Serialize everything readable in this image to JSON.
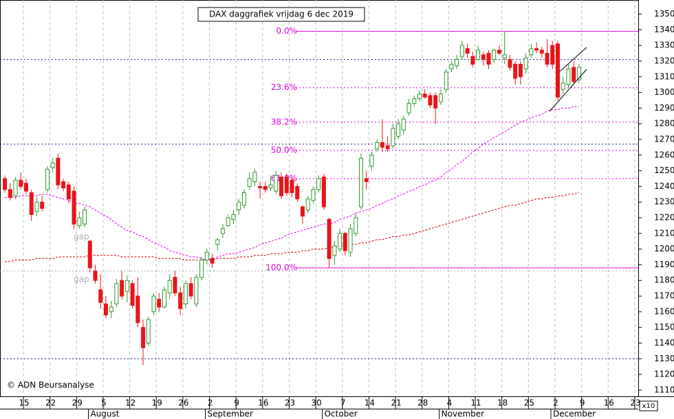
{
  "chart_data": {
    "type": "candlestick",
    "title": "DAX daggrafiek vrijdag 6 dec 2019",
    "copyright": "© ADN Beursanalyse",
    "axis_note": "x10",
    "annotations": [
      "gap",
      "gap"
    ],
    "months": [
      "August",
      "September",
      "October",
      "November",
      "December"
    ],
    "categories": [
      null,
      null,
      null,
      null,
      "15",
      null,
      null,
      null,
      null,
      "22",
      null,
      null,
      null,
      null,
      "29",
      null,
      null,
      null,
      null,
      "5",
      null,
      null,
      null,
      null,
      "12",
      null,
      null,
      null,
      null,
      "19",
      null,
      null,
      null,
      null,
      "26",
      null,
      null,
      null,
      null,
      "2",
      null,
      null,
      null,
      null,
      "9",
      null,
      null,
      null,
      null,
      "16",
      null,
      null,
      null,
      null,
      "23",
      null,
      null,
      null,
      null,
      "30",
      null,
      null,
      null,
      null,
      "7",
      null,
      null,
      null,
      null,
      "14",
      null,
      null,
      null,
      null,
      "21",
      null,
      null,
      null,
      null,
      "28",
      null,
      null,
      null,
      null,
      "4",
      null,
      null,
      null,
      null,
      "11",
      null,
      null,
      null,
      null,
      "18",
      null,
      null,
      null,
      null,
      "25",
      null,
      null,
      null,
      null,
      "2",
      null,
      null,
      null,
      null,
      "9",
      null,
      null,
      null,
      null,
      "16",
      null,
      null,
      null,
      null,
      "23"
    ],
    "up_color": "#2e9a2e",
    "down_color": "#e8141a",
    "open": [
      1245,
      1238,
      1234,
      1244,
      1242,
      1236,
      1224,
      1230,
      1238,
      1252,
      1258,
      1243,
      1241,
      1237,
      1215,
      1216,
      1205,
      1186,
      1174,
      1165,
      1160,
      1165,
      1180,
      1173,
      1178,
      1170,
      1150,
      1140,
      1160,
      1168,
      1163,
      1172,
      1182,
      1172,
      1165,
      1178,
      1165,
      1182,
      1193,
      1194,
      1203,
      1210,
      1215,
      1219,
      1225,
      1228,
      1240,
      1243,
      1240,
      1240,
      1239,
      1237,
      1246,
      1246,
      1244,
      1240,
      1227,
      1225,
      1231,
      1238,
      1246,
      1219,
      1196,
      1200,
      1210,
      1198,
      1210,
      1227,
      1245,
      1253,
      1264,
      1268,
      1266,
      1266,
      1272,
      1276,
      1287,
      1293,
      1296,
      1299,
      1298,
      1298,
      1294,
      1302,
      1315,
      1317,
      1323,
      1328,
      1323,
      1321,
      1324,
      1325,
      1321,
      1327,
      1322,
      1321,
      1318,
      1318,
      1315,
      1324,
      1328,
      1327,
      1325,
      1330,
      1331,
      1302,
      1305,
      1316,
      1308,
      null,
      null,
      null,
      null,
      null,
      null,
      null,
      null,
      null,
      null,
      null
    ],
    "high": [
      1247,
      1242,
      1246,
      1249,
      1245,
      1238,
      1233,
      1234,
      1253,
      1258,
      1261,
      1245,
      1243,
      1240,
      1224,
      1227,
      1206,
      1190,
      1184,
      1170,
      1167,
      1181,
      1186,
      1183,
      1180,
      1182,
      1155,
      1157,
      1172,
      1172,
      1176,
      1184,
      1186,
      1176,
      1180,
      1182,
      1184,
      1195,
      1200,
      1197,
      1207,
      1216,
      1222,
      1225,
      1232,
      1238,
      1249,
      1251,
      1243,
      1243,
      1247,
      1250,
      1249,
      1248,
      1246,
      1242,
      1228,
      1234,
      1240,
      1247,
      1248,
      1220,
      1205,
      1213,
      1211,
      1216,
      1223,
      1261,
      1250,
      1262,
      1270,
      1283,
      1272,
      1280,
      1283,
      1285,
      1296,
      1298,
      1301,
      1302,
      1300,
      1300,
      1302,
      1315,
      1320,
      1324,
      1333,
      1331,
      1326,
      1330,
      1326,
      1327,
      1328,
      1330,
      1339,
      1324,
      1320,
      1320,
      1325,
      1331,
      1332,
      1329,
      1334,
      1333,
      1333,
      1310,
      1318,
      1320,
      1318,
      null,
      null,
      null,
      null,
      null,
      null,
      null,
      null,
      null,
      null,
      null
    ],
    "low": [
      1236,
      1231,
      1232,
      1238,
      1235,
      1218,
      1221,
      1224,
      1236,
      1249,
      1238,
      1237,
      1229,
      1213,
      1213,
      1214,
      1185,
      1178,
      1162,
      1156,
      1156,
      1163,
      1168,
      1166,
      1162,
      1150,
      1126,
      1138,
      1158,
      1160,
      1162,
      1168,
      1170,
      1158,
      1162,
      1168,
      1163,
      1180,
      1190,
      1188,
      1199,
      1207,
      1214,
      1216,
      1222,
      1226,
      1238,
      1240,
      1232,
      1236,
      1237,
      1235,
      1232,
      1234,
      1233,
      1230,
      1216,
      1223,
      1229,
      1236,
      1225,
      1188,
      1190,
      1198,
      1196,
      1195,
      1208,
      1225,
      1238,
      1250,
      1262,
      1262,
      1262,
      1264,
      1270,
      1273,
      1285,
      1291,
      1294,
      1296,
      1290,
      1280,
      1292,
      1300,
      1313,
      1315,
      1321,
      1322,
      1316,
      1320,
      1317,
      1315,
      1319,
      1324,
      1318,
      1314,
      1305,
      1305,
      1312,
      1322,
      1325,
      1322,
      1316,
      1315,
      1295,
      1299,
      1303,
      1305,
      1306,
      null,
      null,
      null,
      null,
      null,
      null,
      null,
      null,
      null,
      null,
      null
    ],
    "close": [
      1238,
      1233,
      1244,
      1240,
      1237,
      1222,
      1230,
      1226,
      1251,
      1255,
      1241,
      1239,
      1232,
      1216,
      1220,
      1225,
      1188,
      1180,
      1166,
      1158,
      1163,
      1178,
      1170,
      1180,
      1164,
      1153,
      1137,
      1155,
      1170,
      1163,
      1174,
      1180,
      1172,
      1162,
      1178,
      1170,
      1182,
      1193,
      1198,
      1191,
      1206,
      1213,
      1220,
      1222,
      1230,
      1236,
      1245,
      1249,
      1239,
      1238,
      1241,
      1247,
      1234,
      1236,
      1236,
      1232,
      1221,
      1232,
      1238,
      1245,
      1227,
      1194,
      1202,
      1210,
      1199,
      1213,
      1220,
      1258,
      1243,
      1260,
      1268,
      1265,
      1264,
      1277,
      1280,
      1283,
      1293,
      1296,
      1299,
      1297,
      1292,
      1290,
      1299,
      1313,
      1318,
      1321,
      1330,
      1325,
      1318,
      1327,
      1321,
      1318,
      1327,
      1325,
      1324,
      1316,
      1309,
      1310,
      1322,
      1328,
      1327,
      1325,
      1318,
      1318,
      1297,
      1306,
      1315,
      1307,
      1316,
      null,
      null,
      null,
      null,
      null,
      null,
      null,
      null,
      null,
      null,
      null
    ],
    "series": [
      {
        "color": "#e000e0",
        "values": [
          1233,
          1233,
          1233,
          1234,
          1234,
          1234,
          1234,
          1235,
          1235,
          1234,
          1233,
          1232,
          1231,
          1230,
          1229,
          1228,
          1227,
          1225,
          1223,
          1221,
          1219,
          1216,
          1214,
          1212,
          1211,
          1209,
          1208,
          1206,
          1204,
          1203,
          1201,
          1199,
          1198,
          1197,
          1196,
          1195,
          1195,
          1194,
          1193,
          1194,
          1195,
          1196,
          1197,
          1197,
          1198,
          1199,
          1200,
          1201,
          1203,
          1204,
          1205,
          1206,
          1207,
          1209,
          1210,
          1211,
          1212,
          1213,
          1214,
          1215,
          1216,
          1216,
          1217,
          1219,
          1220,
          1221,
          1223,
          1224,
          1225,
          1226,
          1228,
          1229,
          1231,
          1232,
          1234,
          1235,
          1237,
          1238,
          1240,
          1241,
          1243,
          1244,
          1246,
          1249,
          1251,
          1254,
          1256,
          1259,
          1262,
          1264,
          1267,
          1269,
          1271,
          1273,
          1275,
          1277,
          1279,
          1281,
          1282,
          1284,
          1285,
          1286,
          1288,
          1289,
          1289,
          1290,
          1290,
          1291,
          1291,
          null,
          null,
          null,
          null,
          null,
          null,
          null,
          null,
          null,
          null,
          null
        ]
      },
      {
        "color": "#cc0000",
        "values": [
          1192,
          1192,
          1193,
          1193,
          1193,
          1193,
          1194,
          1194,
          1194,
          1194,
          1195,
          1195,
          1195,
          1195,
          1195,
          1195,
          1196,
          1196,
          1196,
          1196,
          1196,
          1196,
          1195,
          1195,
          1195,
          1195,
          1195,
          1195,
          1195,
          1194,
          1194,
          1194,
          1194,
          1194,
          1193,
          1193,
          1193,
          1193,
          1193,
          1193,
          1194,
          1194,
          1194,
          1194,
          1195,
          1195,
          1195,
          1196,
          1196,
          1196,
          1197,
          1197,
          1197,
          1198,
          1198,
          1198,
          1199,
          1199,
          1200,
          1200,
          1200,
          1201,
          1201,
          1202,
          1202,
          1203,
          1203,
          1204,
          1204,
          1205,
          1206,
          1206,
          1207,
          1208,
          1208,
          1209,
          1209,
          1210,
          1211,
          1212,
          1213,
          1214,
          1215,
          1216,
          1217,
          1218,
          1219,
          1220,
          1221,
          1222,
          1223,
          1224,
          1225,
          1226,
          1227,
          1228,
          1228,
          1229,
          1230,
          1231,
          1232,
          1232,
          1233,
          1233,
          1234,
          1234,
          1235,
          1235,
          1236,
          null,
          null,
          null,
          null,
          null,
          null,
          null,
          null,
          null,
          null,
          null
        ]
      }
    ],
    "fib_levels": [
      {
        "label": "0.0%",
        "value": 1339
      },
      {
        "label": "23.6%",
        "value": 1303
      },
      {
        "label": "38.2%",
        "value": 1281
      },
      {
        "label": "50.0%",
        "value": 1263
      },
      {
        "label": "61.8%",
        "value": 1245
      },
      {
        "label": "100.0%",
        "value": 1188
      }
    ],
    "fib_color": "#e000e0",
    "hlines": [
      1321,
      1267,
      1130
    ],
    "hline_color": "#1a1a8c",
    "gap_line": 1186,
    "ylim": [
      1106,
      1359
    ],
    "yticks": [
      1110,
      1120,
      1130,
      1140,
      1150,
      1160,
      1170,
      1180,
      1190,
      1200,
      1210,
      1220,
      1230,
      1240,
      1250,
      1260,
      1270,
      1280,
      1290,
      1300,
      1310,
      1320,
      1330,
      1340,
      1350
    ]
  }
}
